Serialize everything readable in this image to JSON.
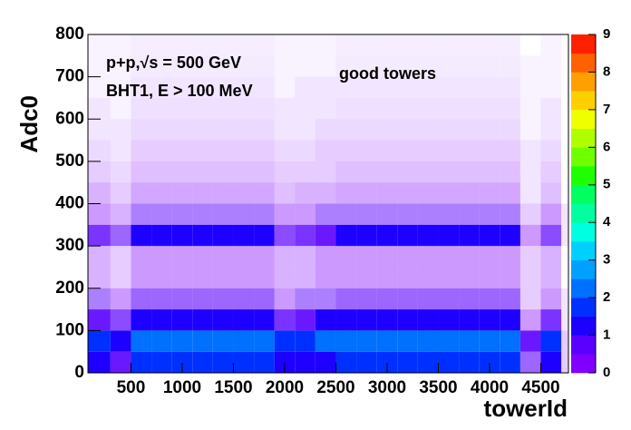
{
  "chart_data": {
    "type": "heatmap",
    "annotations": [
      "p+p,√s = 500 GeV",
      "BHT1, E > 100 MeV",
      "good towers"
    ],
    "x_label": "towerId",
    "y_label": "Adc0",
    "xlim": [
      80,
      4770
    ],
    "ylim": [
      0,
      800
    ],
    "xticks": [
      500,
      1000,
      1500,
      2000,
      2500,
      3000,
      3500,
      4000,
      4500
    ],
    "yticks": [
      0,
      100,
      200,
      300,
      400,
      500,
      600,
      700,
      800
    ],
    "zlim": [
      0,
      9
    ],
    "zticks": [
      0,
      1,
      2,
      3,
      4,
      5,
      6,
      7,
      8,
      9
    ],
    "palette": [
      "#8000ff",
      "#5a00ff",
      "#1e00ff",
      "#0030ff",
      "#0070ff",
      "#00a0ff",
      "#00d0ff",
      "#00ffe0",
      "#00ffa0",
      "#00ff60",
      "#20ff00",
      "#70ff00",
      "#b0ff00",
      "#f0ff00",
      "#ffd000",
      "#ffa000",
      "#ff6000",
      "#ff2000"
    ],
    "xbins": [
      80,
      300,
      500,
      700,
      900,
      1100,
      1300,
      1500,
      1700,
      1900,
      2100,
      2300,
      2500,
      2700,
      2900,
      3100,
      3300,
      3500,
      3700,
      3900,
      4100,
      4300,
      4500,
      4700,
      4770
    ],
    "ybins": [
      0,
      50,
      100,
      150,
      200,
      250,
      300,
      350,
      400,
      450,
      500,
      550,
      600,
      650,
      700,
      750,
      800
    ],
    "z": [
      [
        1.2,
        0.9,
        1.5,
        1.5,
        1.5,
        1.5,
        1.5,
        1.5,
        1.5,
        1.1,
        1.2,
        1.4,
        1.5,
        1.5,
        1.5,
        1.5,
        1.5,
        1.5,
        1.5,
        1.5,
        1.5,
        0.6,
        1.1,
        0.2
      ],
      [
        1.8,
        1.3,
        2.2,
        2.2,
        2.2,
        2.2,
        2.2,
        2.2,
        2.2,
        1.5,
        1.8,
        2.0,
        2.2,
        2.2,
        2.2,
        2.2,
        2.2,
        2.2,
        2.2,
        2.2,
        2.2,
        0.9,
        1.5,
        0.2
      ],
      [
        0.9,
        0.7,
        1.1,
        1.1,
        1.1,
        1.1,
        1.1,
        1.1,
        1.1,
        0.8,
        0.9,
        1.0,
        1.1,
        1.1,
        1.1,
        1.1,
        1.1,
        1.1,
        1.1,
        1.1,
        1.1,
        0.4,
        0.8,
        0.1
      ],
      [
        0.5,
        0.4,
        0.6,
        0.6,
        0.6,
        0.6,
        0.6,
        0.6,
        0.6,
        0.4,
        0.5,
        0.5,
        0.6,
        0.6,
        0.6,
        0.6,
        0.6,
        0.6,
        0.6,
        0.6,
        0.6,
        0.2,
        0.4,
        0.1
      ],
      [
        0.3,
        0.2,
        0.4,
        0.4,
        0.4,
        0.4,
        0.4,
        0.4,
        0.4,
        0.3,
        0.3,
        0.4,
        0.4,
        0.4,
        0.4,
        0.4,
        0.4,
        0.4,
        0.4,
        0.4,
        0.4,
        0.2,
        0.3,
        0
      ],
      [
        0.3,
        0.2,
        0.4,
        0.4,
        0.4,
        0.4,
        0.4,
        0.4,
        0.4,
        0.3,
        0.3,
        0.4,
        0.4,
        0.4,
        0.4,
        0.4,
        0.4,
        0.4,
        0.4,
        0.4,
        0.4,
        0.2,
        0.3,
        0
      ],
      [
        0.8,
        0.6,
        1.0,
        1.0,
        1.0,
        1.0,
        1.0,
        1.0,
        1.0,
        0.7,
        0.8,
        0.9,
        1.0,
        1.0,
        1.0,
        1.0,
        1.0,
        1.0,
        1.0,
        1.0,
        1.0,
        0.4,
        0.7,
        0.1
      ],
      [
        0.4,
        0.3,
        0.5,
        0.5,
        0.5,
        0.5,
        0.5,
        0.5,
        0.5,
        0.4,
        0.4,
        0.5,
        0.5,
        0.5,
        0.5,
        0.5,
        0.5,
        0.5,
        0.5,
        0.5,
        0.5,
        0.2,
        0.4,
        0.1
      ],
      [
        0.3,
        0.2,
        0.35,
        0.35,
        0.35,
        0.35,
        0.35,
        0.35,
        0.35,
        0.25,
        0.3,
        0.3,
        0.35,
        0.35,
        0.35,
        0.35,
        0.35,
        0.35,
        0.35,
        0.35,
        0.35,
        0.1,
        0.25,
        0
      ],
      [
        0.2,
        0.15,
        0.25,
        0.25,
        0.25,
        0.25,
        0.25,
        0.25,
        0.25,
        0.2,
        0.2,
        0.2,
        0.25,
        0.25,
        0.25,
        0.25,
        0.25,
        0.25,
        0.25,
        0.25,
        0.25,
        0.1,
        0.2,
        0
      ],
      [
        0.15,
        0.1,
        0.2,
        0.2,
        0.2,
        0.2,
        0.2,
        0.2,
        0.2,
        0.15,
        0.15,
        0.2,
        0.2,
        0.2,
        0.2,
        0.2,
        0.2,
        0.2,
        0.2,
        0.2,
        0.2,
        0.1,
        0.15,
        0
      ],
      [
        0.1,
        0.1,
        0.15,
        0.15,
        0.15,
        0.15,
        0.15,
        0.15,
        0.15,
        0.1,
        0.1,
        0.15,
        0.15,
        0.15,
        0.15,
        0.15,
        0.15,
        0.15,
        0.15,
        0.15,
        0.15,
        0.05,
        0.1,
        0
      ],
      [
        0.1,
        0.05,
        0.12,
        0.12,
        0.12,
        0.12,
        0.12,
        0.12,
        0.12,
        0.1,
        0.1,
        0.1,
        0.12,
        0.12,
        0.12,
        0.12,
        0.12,
        0.12,
        0.12,
        0.12,
        0.12,
        0.05,
        0.1,
        0
      ],
      [
        0.05,
        0.05,
        0.1,
        0.1,
        0.1,
        0.1,
        0.1,
        0.1,
        0.1,
        0.05,
        0.1,
        0.1,
        0.1,
        0.1,
        0.1,
        0.1,
        0.1,
        0.1,
        0.1,
        0.1,
        0.1,
        0.05,
        0.05,
        0
      ],
      [
        0.05,
        0.05,
        0.08,
        0.08,
        0.08,
        0.08,
        0.08,
        0.08,
        0.08,
        0.05,
        0.05,
        0.05,
        0.08,
        0.08,
        0.08,
        0.08,
        0.08,
        0.08,
        0.08,
        0.08,
        0.08,
        0.05,
        0.05,
        0
      ],
      [
        0.05,
        0.05,
        0.07,
        0.07,
        0.07,
        0.07,
        0.07,
        0.07,
        0.07,
        0.05,
        0.05,
        0.05,
        0.07,
        0.07,
        0.07,
        0.07,
        0.07,
        0.07,
        0.07,
        0.07,
        0.07,
        0,
        0.05,
        0
      ]
    ]
  }
}
